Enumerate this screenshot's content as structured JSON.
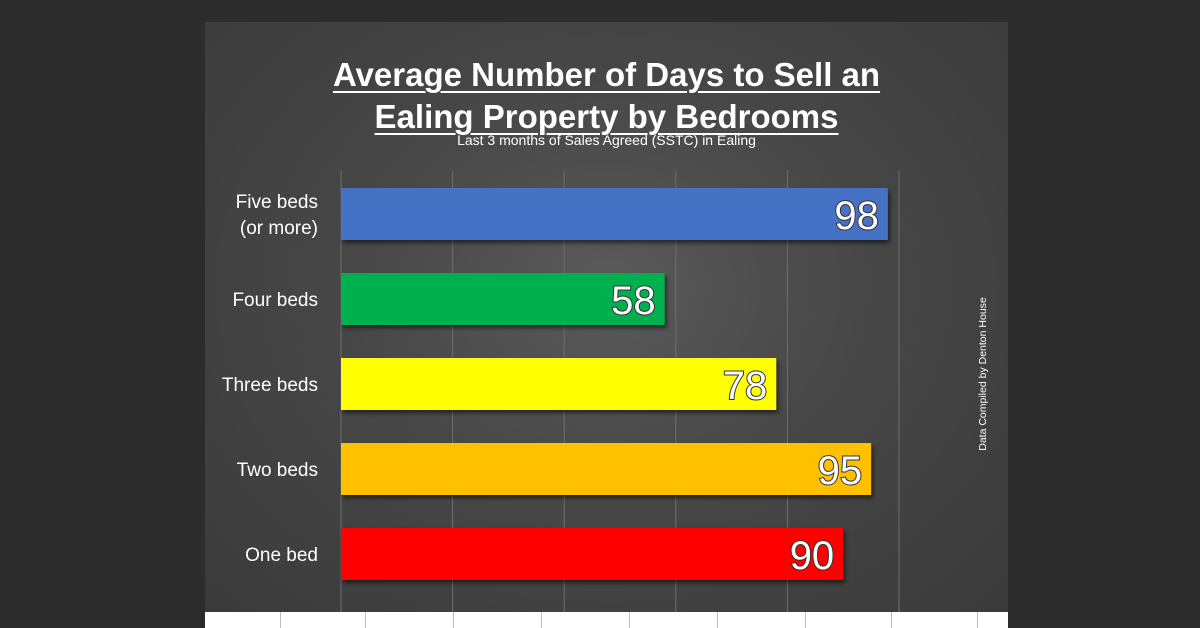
{
  "chart_data": {
    "type": "bar",
    "orientation": "horizontal",
    "title_lines": [
      "Average Number of Days to Sell an",
      "Ealing Property by Bedrooms"
    ],
    "subtitle": "Last 3 months of Sales Agreed (SSTC) in Ealing",
    "source_note": "Data Compiled by Denton House",
    "categories": [
      [
        "Five beds",
        "(or more)"
      ],
      [
        "Four beds"
      ],
      [
        "Three beds"
      ],
      [
        "Two beds"
      ],
      [
        "One bed"
      ]
    ],
    "values": [
      98,
      58,
      78,
      95,
      90
    ],
    "colors": [
      "#4472c4",
      "#00b050",
      "#ffff00",
      "#ffc000",
      "#ff0000"
    ],
    "xlim": [
      0,
      100
    ],
    "grid": true,
    "data_labels": true
  }
}
